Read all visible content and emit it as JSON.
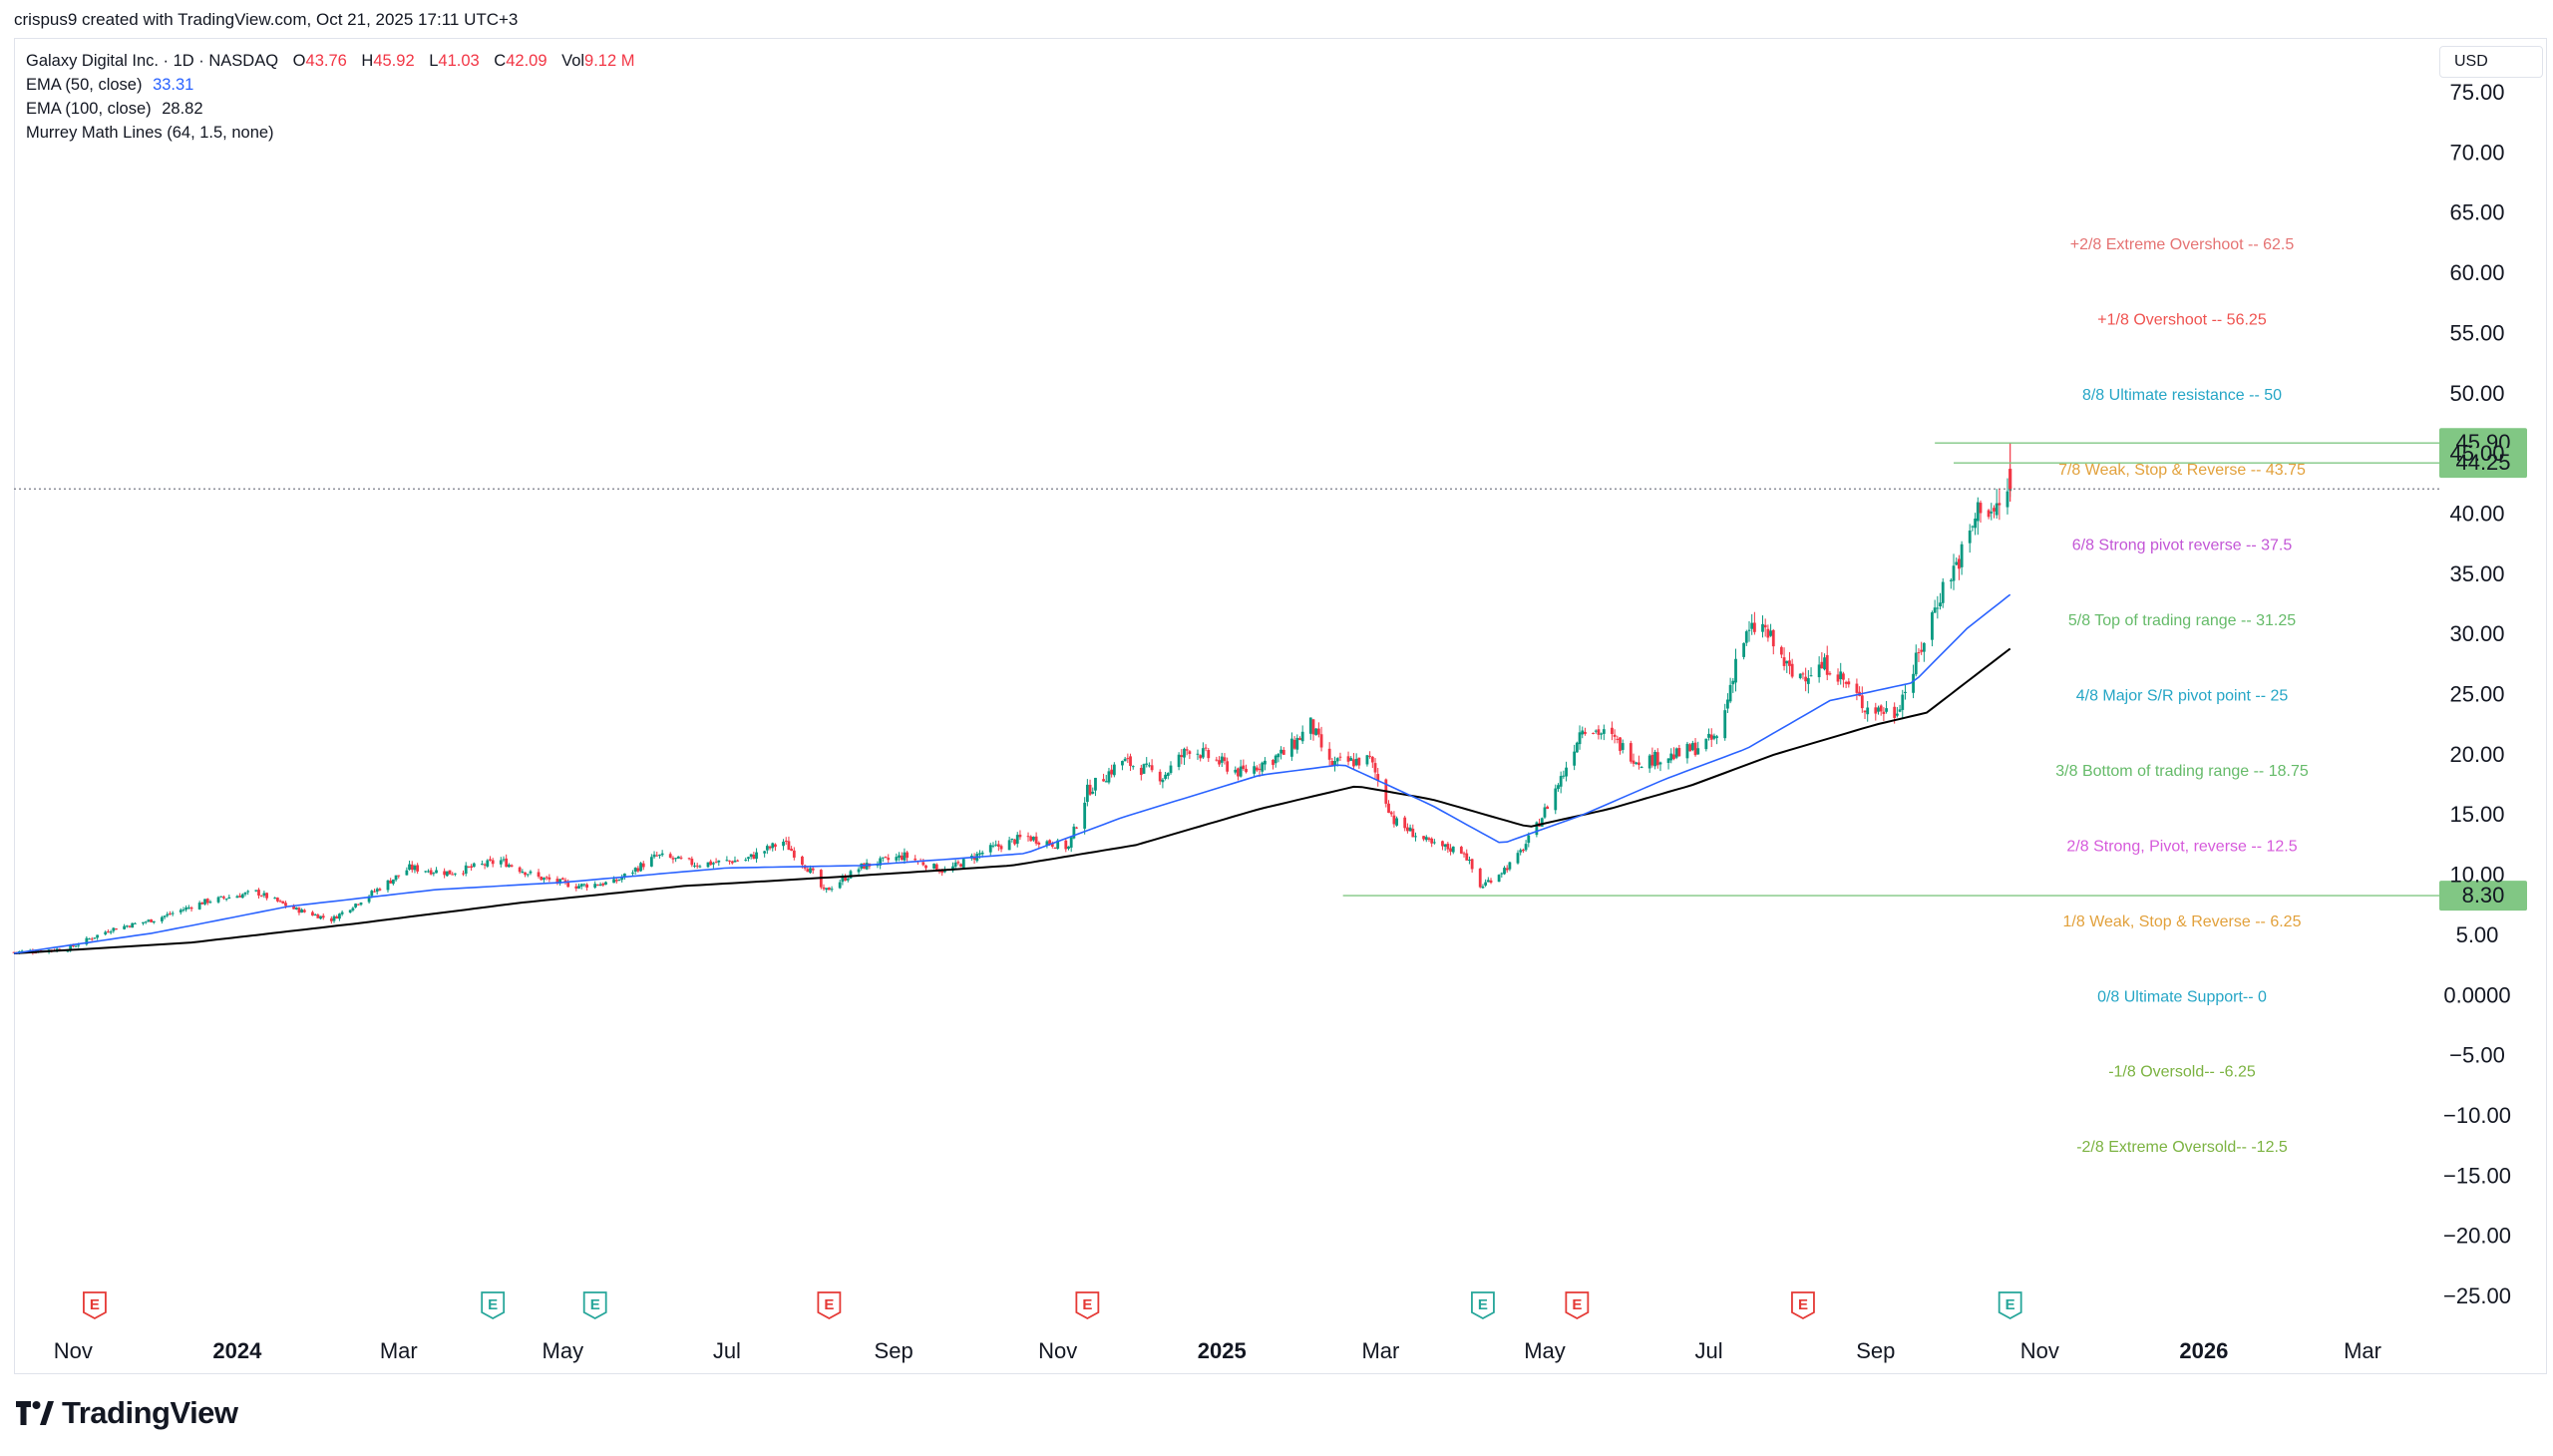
{
  "header": "crispus9 created with TradingView.com, Oct 21, 2025 17:11 UTC+3",
  "legend": {
    "title": "Galaxy Digital Inc. · 1D · NASDAQ",
    "open_key": "O",
    "open": "43.76",
    "high_key": "H",
    "high": "45.92",
    "low_key": "L",
    "low": "41.03",
    "close_key": "C",
    "close": "42.09",
    "vol_key": "Vol",
    "vol": "9.12 M",
    "ema50_label": "EMA (50, close)",
    "ema50_value": "33.31",
    "ema100_label": "EMA (100, close)",
    "ema100_value": "28.82",
    "murrey_label": "Murrey Math Lines (64, 1.5, none)"
  },
  "currency": "USD",
  "brand": "TradingView",
  "colors": {
    "up": "#089981",
    "down": "#f23645",
    "ema50": "#2962ff",
    "ema100": "#000000",
    "level_marker": "#81c784",
    "grid_dotted": "#787b86"
  },
  "chart_data": {
    "type": "candlestick",
    "symbol": "Galaxy Digital Inc.",
    "interval": "1D",
    "exchange": "NASDAQ",
    "x_range": [
      "2023-10-10",
      "2026-03-31"
    ],
    "y_range": [
      -27.5,
      78
    ],
    "y_ticks": [
      "75.00",
      "70.00",
      "65.00",
      "60.00",
      "55.00",
      "50.00",
      "45.00",
      "40.00",
      "35.00",
      "30.00",
      "25.00",
      "20.00",
      "15.00",
      "10.00",
      "5.00",
      "0.0000",
      "−5.00",
      "−10.00",
      "−15.00",
      "−20.00",
      "−25.00"
    ],
    "x_ticks": [
      {
        "label": "Nov",
        "date": "2023-11-01",
        "bold": false
      },
      {
        "label": "2024",
        "date": "2024-01-01",
        "bold": true
      },
      {
        "label": "Mar",
        "date": "2024-03-01",
        "bold": false
      },
      {
        "label": "May",
        "date": "2024-05-01",
        "bold": false
      },
      {
        "label": "Jul",
        "date": "2024-07-01",
        "bold": false
      },
      {
        "label": "Sep",
        "date": "2024-09-01",
        "bold": false
      },
      {
        "label": "Nov",
        "date": "2024-11-01",
        "bold": false
      },
      {
        "label": "2025",
        "date": "2025-01-01",
        "bold": true
      },
      {
        "label": "Mar",
        "date": "2025-03-01",
        "bold": false
      },
      {
        "label": "May",
        "date": "2025-05-01",
        "bold": false
      },
      {
        "label": "Jul",
        "date": "2025-07-01",
        "bold": false
      },
      {
        "label": "Sep",
        "date": "2025-09-01",
        "bold": false
      },
      {
        "label": "Nov",
        "date": "2025-11-01",
        "bold": false
      },
      {
        "label": "2026",
        "date": "2026-01-01",
        "bold": true
      },
      {
        "label": "Mar",
        "date": "2026-03-01",
        "bold": false
      }
    ],
    "price_path": [
      [
        "2023-10-10",
        3.6
      ],
      [
        "2023-10-30",
        3.9
      ],
      [
        "2023-11-15",
        5.5
      ],
      [
        "2023-12-01",
        6.3
      ],
      [
        "2023-12-20",
        7.8
      ],
      [
        "2024-01-08",
        8.6
      ],
      [
        "2024-01-22",
        7.2
      ],
      [
        "2024-02-05",
        6.3
      ],
      [
        "2024-02-20",
        8.5
      ],
      [
        "2024-03-05",
        10.6
      ],
      [
        "2024-03-20",
        10.2
      ],
      [
        "2024-04-08",
        11.2
      ],
      [
        "2024-04-22",
        9.8
      ],
      [
        "2024-05-06",
        9.1
      ],
      [
        "2024-05-20",
        9.4
      ],
      [
        "2024-06-05",
        11.6
      ],
      [
        "2024-06-20",
        10.9
      ],
      [
        "2024-07-08",
        11.3
      ],
      [
        "2024-07-22",
        12.8
      ],
      [
        "2024-08-02",
        10.1
      ],
      [
        "2024-08-06",
        8.6
      ],
      [
        "2024-08-20",
        10.7
      ],
      [
        "2024-09-05",
        11.6
      ],
      [
        "2024-09-20",
        10.3
      ],
      [
        "2024-10-05",
        12.0
      ],
      [
        "2024-10-20",
        13.2
      ],
      [
        "2024-11-05",
        12.3
      ],
      [
        "2024-11-12",
        17.0
      ],
      [
        "2024-11-25",
        19.5
      ],
      [
        "2024-12-10",
        18.2
      ],
      [
        "2024-12-20",
        20.6
      ],
      [
        "2025-01-08",
        18.5
      ],
      [
        "2025-01-25",
        20.2
      ],
      [
        "2025-02-03",
        22.5
      ],
      [
        "2025-02-10",
        19.2
      ],
      [
        "2025-02-25",
        19.6
      ],
      [
        "2025-03-06",
        14.5
      ],
      [
        "2025-03-20",
        12.5
      ],
      [
        "2025-04-01",
        12.0
      ],
      [
        "2025-04-07",
        9.0
      ],
      [
        "2025-04-20",
        11.2
      ],
      [
        "2025-04-28",
        14.0
      ],
      [
        "2025-05-08",
        18.5
      ],
      [
        "2025-05-15",
        22.5
      ],
      [
        "2025-05-25",
        21.5
      ],
      [
        "2025-06-05",
        19.5
      ],
      [
        "2025-06-20",
        20.0
      ],
      [
        "2025-07-05",
        21.5
      ],
      [
        "2025-07-12",
        29.0
      ],
      [
        "2025-07-20",
        31.0
      ],
      [
        "2025-08-01",
        26.5
      ],
      [
        "2025-08-15",
        27.5
      ],
      [
        "2025-08-28",
        24.0
      ],
      [
        "2025-09-08",
        23.5
      ],
      [
        "2025-09-15",
        27.0
      ],
      [
        "2025-09-25",
        33.5
      ],
      [
        "2025-10-05",
        37.5
      ],
      [
        "2025-10-10",
        41.0
      ],
      [
        "2025-10-15",
        40.0
      ],
      [
        "2025-10-21",
        42.09
      ]
    ],
    "ema50_path": [
      [
        "2023-10-10",
        3.5
      ],
      [
        "2023-12-01",
        5.2
      ],
      [
        "2024-01-20",
        7.4
      ],
      [
        "2024-03-15",
        8.8
      ],
      [
        "2024-05-01",
        9.4
      ],
      [
        "2024-07-01",
        10.6
      ],
      [
        "2024-08-20",
        10.8
      ],
      [
        "2024-10-20",
        11.8
      ],
      [
        "2024-11-25",
        14.8
      ],
      [
        "2025-01-15",
        18.3
      ],
      [
        "2025-02-15",
        19.2
      ],
      [
        "2025-03-20",
        15.8
      ],
      [
        "2025-04-15",
        12.6
      ],
      [
        "2025-05-15",
        15.0
      ],
      [
        "2025-06-15",
        18.0
      ],
      [
        "2025-07-15",
        20.5
      ],
      [
        "2025-08-15",
        24.5
      ],
      [
        "2025-09-15",
        26.0
      ],
      [
        "2025-10-05",
        30.5
      ],
      [
        "2025-10-21",
        33.31
      ]
    ],
    "ema100_path": [
      [
        "2023-10-10",
        3.5
      ],
      [
        "2023-12-15",
        4.4
      ],
      [
        "2024-02-15",
        6.0
      ],
      [
        "2024-04-15",
        7.7
      ],
      [
        "2024-06-15",
        9.1
      ],
      [
        "2024-08-15",
        9.9
      ],
      [
        "2024-10-15",
        10.8
      ],
      [
        "2024-11-30",
        12.5
      ],
      [
        "2025-01-15",
        15.5
      ],
      [
        "2025-02-20",
        17.4
      ],
      [
        "2025-03-20",
        16.3
      ],
      [
        "2025-04-25",
        14.0
      ],
      [
        "2025-05-25",
        15.5
      ],
      [
        "2025-06-25",
        17.5
      ],
      [
        "2025-07-25",
        20.0
      ],
      [
        "2025-09-01",
        22.5
      ],
      [
        "2025-09-20",
        23.5
      ],
      [
        "2025-10-21",
        28.82
      ]
    ],
    "current_price": 42.09,
    "horizontal_lines": [
      {
        "price": 45.9,
        "label": "45.90",
        "from": "2025-09-23"
      },
      {
        "price": 44.25,
        "label": "44.25",
        "from": "2025-09-30"
      },
      {
        "price": 8.3,
        "label": "8.30",
        "from": "2025-02-15"
      }
    ],
    "murrey_levels": [
      {
        "price": 62.5,
        "text": "+2/8 Extreme Overshoot --  62.5",
        "color": "#e57373"
      },
      {
        "price": 56.25,
        "text": "+1/8 Overshoot --  56.25",
        "color": "#ef5350"
      },
      {
        "price": 50,
        "text": "8/8 Ultimate resistance --  50",
        "color": "#26a6c6"
      },
      {
        "price": 43.75,
        "text": "7/8 Weak, Stop & Reverse --  43.75",
        "color": "#e2a13c"
      },
      {
        "price": 37.5,
        "text": "6/8 Strong pivot reverse --  37.5",
        "color": "#c356d6"
      },
      {
        "price": 31.25,
        "text": "5/8 Top of trading range --  31.25",
        "color": "#66bb6a"
      },
      {
        "price": 25,
        "text": "4/8 Major S/R pivot point --  25",
        "color": "#26a6c6"
      },
      {
        "price": 18.75,
        "text": "3/8 Bottom of trading range --  18.75",
        "color": "#66bb6a"
      },
      {
        "price": 12.5,
        "text": "2/8 Strong, Pivot, reverse --  12.5",
        "color": "#d65adb"
      },
      {
        "price": 6.25,
        "text": "1/8 Weak, Stop & Reverse --  6.25",
        "color": "#e2a13c"
      },
      {
        "price": 0,
        "text": "0/8 Ultimate Support--  0",
        "color": "#26a6c6"
      },
      {
        "price": -6.25,
        "text": "-1/8 Oversold--  -6.25",
        "color": "#7cb342"
      },
      {
        "price": -12.5,
        "text": "-2/8 Extreme Oversold--  -12.5",
        "color": "#7cb342"
      }
    ],
    "event_markers": [
      {
        "date": "2023-11-09",
        "type": "E",
        "kind": "earnings"
      },
      {
        "date": "2024-04-05",
        "type": "E",
        "kind": "dividend"
      },
      {
        "date": "2024-05-13",
        "type": "E",
        "kind": "dividend"
      },
      {
        "date": "2024-08-08",
        "type": "E",
        "kind": "earnings"
      },
      {
        "date": "2024-11-12",
        "type": "E",
        "kind": "earnings"
      },
      {
        "date": "2025-04-08",
        "type": "E",
        "kind": "dividend"
      },
      {
        "date": "2025-05-13",
        "type": "E",
        "kind": "earnings"
      },
      {
        "date": "2025-08-05",
        "type": "E",
        "kind": "earnings"
      },
      {
        "date": "2025-10-21",
        "type": "E",
        "kind": "dividend"
      }
    ]
  }
}
